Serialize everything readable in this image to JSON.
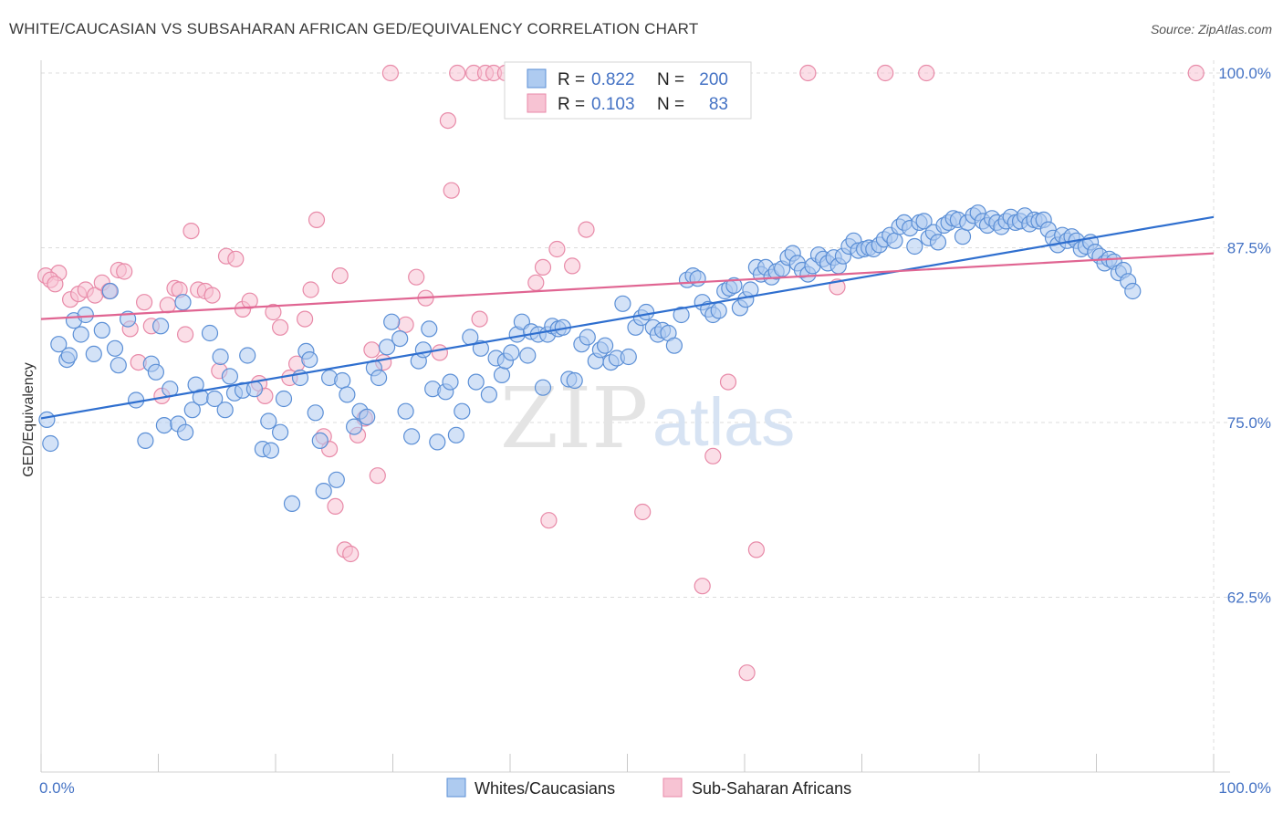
{
  "title": "WHITE/CAUCASIAN VS SUBSAHARAN AFRICAN GED/EQUIVALENCY CORRELATION CHART",
  "source": "Source: ZipAtlas.com",
  "watermark": {
    "zip": "ZIP",
    "atlas": "atlas"
  },
  "legend": {
    "r_label": "R =",
    "n_label": "N =",
    "series": [
      {
        "r": "0.822",
        "n": "200"
      },
      {
        "r": "0.103",
        "n": "83"
      }
    ]
  },
  "bottom_legend": [
    "Whites/Caucasians",
    "Sub-Saharan Africans"
  ],
  "colors": {
    "blue_fill": "#aecbf0",
    "blue_stroke": "#5b8fd6",
    "blue_line": "#2f6fcf",
    "pink_fill": "#f7c3d3",
    "pink_stroke": "#e88aa8",
    "pink_line": "#e06592",
    "grid": "#dcdcdc",
    "label": "#4472c4"
  },
  "chart_data": {
    "type": "scatter",
    "title": "WHITE/CAUCASIAN VS SUBSAHARAN AFRICAN GED/EQUIVALENCY CORRELATION CHART",
    "xlabel": "",
    "ylabel": "GED/Equivalency",
    "xlim": [
      0,
      100
    ],
    "ylim": [
      50,
      100
    ],
    "x_tick_labels": [
      "0.0%",
      "100.0%"
    ],
    "y_ticks": [
      62.5,
      75.0,
      87.5,
      100.0
    ],
    "y_tick_labels": [
      "62.5%",
      "75.0%",
      "87.5%",
      "100.0%"
    ],
    "grid": "horizontal dashed",
    "legend_placement": "top-center",
    "series": [
      {
        "name": "Whites/Caucasians",
        "color": "#5b8fd6",
        "r": 0.822,
        "n": 200,
        "trend": {
          "x": [
            0,
            100
          ],
          "y": [
            75.3,
            89.7
          ]
        },
        "points": [
          [
            0.5,
            75.2
          ],
          [
            0.8,
            73.5
          ],
          [
            1.5,
            80.6
          ],
          [
            2.2,
            79.5
          ],
          [
            2.4,
            79.8
          ],
          [
            2.8,
            82.3
          ],
          [
            3.4,
            81.3
          ],
          [
            3.8,
            82.7
          ],
          [
            4.5,
            79.9
          ],
          [
            5.2,
            81.6
          ],
          [
            5.9,
            84.4
          ],
          [
            6.3,
            80.3
          ],
          [
            6.6,
            79.1
          ],
          [
            7.4,
            82.4
          ],
          [
            8.1,
            76.6
          ],
          [
            8.9,
            73.7
          ],
          [
            9.4,
            79.2
          ],
          [
            9.8,
            78.6
          ],
          [
            10.2,
            81.9
          ],
          [
            10.5,
            74.8
          ],
          [
            11.0,
            77.4
          ],
          [
            11.7,
            74.9
          ],
          [
            12.1,
            83.6
          ],
          [
            12.3,
            74.3
          ],
          [
            12.9,
            75.9
          ],
          [
            13.2,
            77.7
          ],
          [
            13.6,
            76.8
          ],
          [
            14.4,
            81.4
          ],
          [
            14.8,
            76.7
          ],
          [
            15.3,
            79.7
          ],
          [
            15.7,
            75.9
          ],
          [
            16.1,
            78.3
          ],
          [
            16.5,
            77.1
          ],
          [
            17.2,
            77.3
          ],
          [
            17.6,
            79.8
          ],
          [
            18.2,
            77.4
          ],
          [
            18.9,
            73.1
          ],
          [
            19.4,
            75.1
          ],
          [
            19.6,
            73.0
          ],
          [
            20.4,
            74.3
          ],
          [
            20.7,
            76.7
          ],
          [
            21.4,
            69.2
          ],
          [
            22.1,
            78.2
          ],
          [
            22.6,
            80.1
          ],
          [
            22.9,
            79.5
          ],
          [
            23.4,
            75.7
          ],
          [
            23.8,
            73.7
          ],
          [
            24.1,
            70.1
          ],
          [
            24.6,
            78.2
          ],
          [
            25.2,
            70.9
          ],
          [
            25.7,
            78.0
          ],
          [
            26.1,
            77.0
          ],
          [
            26.7,
            74.7
          ],
          [
            27.2,
            75.8
          ],
          [
            27.8,
            75.4
          ],
          [
            28.4,
            78.9
          ],
          [
            28.8,
            78.2
          ],
          [
            29.5,
            80.4
          ],
          [
            29.9,
            82.2
          ],
          [
            30.6,
            81.0
          ],
          [
            31.1,
            75.8
          ],
          [
            31.6,
            74.0
          ],
          [
            32.2,
            79.4
          ],
          [
            32.6,
            80.2
          ],
          [
            33.1,
            81.7
          ],
          [
            33.4,
            77.4
          ],
          [
            33.8,
            73.6
          ],
          [
            34.5,
            77.2
          ],
          [
            34.9,
            77.9
          ],
          [
            35.4,
            74.1
          ],
          [
            35.9,
            75.8
          ],
          [
            36.6,
            81.1
          ],
          [
            37.1,
            77.9
          ],
          [
            37.5,
            80.3
          ],
          [
            38.2,
            77.0
          ],
          [
            38.8,
            79.6
          ],
          [
            39.3,
            78.4
          ],
          [
            39.6,
            79.4
          ],
          [
            40.1,
            80.0
          ],
          [
            40.6,
            81.3
          ],
          [
            41.0,
            82.2
          ],
          [
            41.5,
            79.8
          ],
          [
            41.8,
            81.5
          ],
          [
            42.4,
            81.3
          ],
          [
            42.8,
            77.5
          ],
          [
            43.2,
            81.3
          ],
          [
            43.6,
            81.9
          ],
          [
            44.1,
            81.7
          ],
          [
            44.5,
            81.8
          ],
          [
            45.0,
            78.1
          ],
          [
            45.5,
            78.0
          ],
          [
            46.1,
            80.6
          ],
          [
            46.6,
            81.1
          ],
          [
            47.3,
            79.4
          ],
          [
            47.7,
            80.2
          ],
          [
            48.1,
            80.5
          ],
          [
            48.6,
            79.3
          ],
          [
            49.1,
            79.6
          ],
          [
            49.6,
            83.5
          ],
          [
            50.1,
            79.7
          ],
          [
            50.7,
            81.8
          ],
          [
            51.2,
            82.5
          ],
          [
            51.6,
            82.9
          ],
          [
            52.2,
            81.8
          ],
          [
            52.6,
            81.3
          ],
          [
            53.0,
            81.6
          ],
          [
            53.5,
            81.4
          ],
          [
            54.0,
            80.5
          ],
          [
            54.6,
            82.7
          ],
          [
            55.1,
            85.2
          ],
          [
            55.6,
            85.5
          ],
          [
            56.0,
            85.3
          ],
          [
            56.4,
            83.6
          ],
          [
            56.9,
            83.1
          ],
          [
            57.3,
            82.7
          ],
          [
            57.8,
            83.0
          ],
          [
            58.3,
            84.4
          ],
          [
            58.7,
            84.6
          ],
          [
            59.1,
            84.8
          ],
          [
            59.6,
            83.2
          ],
          [
            60.1,
            83.8
          ],
          [
            60.5,
            84.5
          ],
          [
            61.0,
            86.1
          ],
          [
            61.4,
            85.6
          ],
          [
            61.8,
            86.1
          ],
          [
            62.3,
            85.4
          ],
          [
            62.7,
            85.8
          ],
          [
            63.2,
            86.0
          ],
          [
            63.7,
            86.8
          ],
          [
            64.1,
            87.1
          ],
          [
            64.5,
            86.4
          ],
          [
            64.9,
            85.9
          ],
          [
            65.4,
            85.6
          ],
          [
            65.8,
            86.2
          ],
          [
            66.3,
            87.0
          ],
          [
            66.7,
            86.7
          ],
          [
            67.1,
            86.4
          ],
          [
            67.6,
            86.8
          ],
          [
            68.0,
            86.2
          ],
          [
            68.4,
            86.9
          ],
          [
            68.9,
            87.6
          ],
          [
            69.3,
            88.0
          ],
          [
            69.7,
            87.3
          ],
          [
            70.2,
            87.4
          ],
          [
            70.6,
            87.5
          ],
          [
            71.0,
            87.4
          ],
          [
            71.5,
            87.7
          ],
          [
            71.9,
            88.1
          ],
          [
            72.4,
            88.4
          ],
          [
            72.8,
            88.0
          ],
          [
            73.2,
            89.0
          ],
          [
            73.6,
            89.3
          ],
          [
            74.1,
            88.9
          ],
          [
            74.5,
            87.6
          ],
          [
            74.9,
            89.3
          ],
          [
            75.3,
            89.4
          ],
          [
            75.7,
            88.2
          ],
          [
            76.1,
            88.6
          ],
          [
            76.5,
            87.9
          ],
          [
            77.0,
            89.1
          ],
          [
            77.4,
            89.3
          ],
          [
            77.8,
            89.6
          ],
          [
            78.2,
            89.5
          ],
          [
            78.6,
            88.3
          ],
          [
            79.0,
            89.3
          ],
          [
            79.5,
            89.8
          ],
          [
            79.9,
            90.0
          ],
          [
            80.3,
            89.4
          ],
          [
            80.7,
            89.1
          ],
          [
            81.1,
            89.6
          ],
          [
            81.5,
            89.3
          ],
          [
            81.9,
            89.0
          ],
          [
            82.3,
            89.4
          ],
          [
            82.7,
            89.7
          ],
          [
            83.1,
            89.3
          ],
          [
            83.5,
            89.4
          ],
          [
            83.9,
            89.8
          ],
          [
            84.3,
            89.2
          ],
          [
            84.7,
            89.5
          ],
          [
            85.1,
            89.4
          ],
          [
            85.5,
            89.5
          ],
          [
            85.9,
            88.8
          ],
          [
            86.3,
            88.2
          ],
          [
            86.7,
            87.7
          ],
          [
            87.1,
            88.4
          ],
          [
            87.5,
            88.0
          ],
          [
            87.9,
            88.3
          ],
          [
            88.3,
            88.0
          ],
          [
            88.7,
            87.4
          ],
          [
            89.1,
            87.6
          ],
          [
            89.5,
            87.9
          ],
          [
            89.9,
            87.2
          ],
          [
            90.3,
            86.9
          ],
          [
            90.7,
            86.4
          ],
          [
            91.1,
            86.7
          ],
          [
            91.5,
            86.5
          ],
          [
            91.9,
            85.7
          ],
          [
            92.3,
            85.9
          ],
          [
            92.7,
            85.1
          ],
          [
            93.1,
            84.4
          ]
        ]
      },
      {
        "name": "Sub-Saharan Africans",
        "color": "#e88aa8",
        "r": 0.103,
        "n": 83,
        "trend": {
          "x": [
            0,
            100
          ],
          "y": [
            82.4,
            87.1
          ]
        },
        "points": [
          [
            0.4,
            85.5
          ],
          [
            1.5,
            85.7
          ],
          [
            2.5,
            83.8
          ],
          [
            3.2,
            84.2
          ],
          [
            3.8,
            84.5
          ],
          [
            4.6,
            84.1
          ],
          [
            5.2,
            85.0
          ],
          [
            5.8,
            84.4
          ],
          [
            6.6,
            85.9
          ],
          [
            7.1,
            85.8
          ],
          [
            7.6,
            81.7
          ],
          [
            8.3,
            79.3
          ],
          [
            8.8,
            83.6
          ],
          [
            9.4,
            81.9
          ],
          [
            10.3,
            76.9
          ],
          [
            10.8,
            83.4
          ],
          [
            11.4,
            84.6
          ],
          [
            11.8,
            84.5
          ],
          [
            12.3,
            81.3
          ],
          [
            12.8,
            88.7
          ],
          [
            13.4,
            84.5
          ],
          [
            14.0,
            84.4
          ],
          [
            14.6,
            84.1
          ],
          [
            15.2,
            78.7
          ],
          [
            15.8,
            86.9
          ],
          [
            16.6,
            86.7
          ],
          [
            17.2,
            83.1
          ],
          [
            17.8,
            83.7
          ],
          [
            18.6,
            77.8
          ],
          [
            19.1,
            76.9
          ],
          [
            19.8,
            82.9
          ],
          [
            20.4,
            81.8
          ],
          [
            21.2,
            78.2
          ],
          [
            21.8,
            79.2
          ],
          [
            22.5,
            82.4
          ],
          [
            23.0,
            84.5
          ],
          [
            23.5,
            89.5
          ],
          [
            24.1,
            74.0
          ],
          [
            24.6,
            73.1
          ],
          [
            25.1,
            69.0
          ],
          [
            25.5,
            85.5
          ],
          [
            25.9,
            65.9
          ],
          [
            26.4,
            65.6
          ],
          [
            27.0,
            74.1
          ],
          [
            27.6,
            75.3
          ],
          [
            28.2,
            80.2
          ],
          [
            28.7,
            71.2
          ],
          [
            29.2,
            79.3
          ],
          [
            29.8,
            100.0
          ],
          [
            31.1,
            82.0
          ],
          [
            32.0,
            85.4
          ],
          [
            32.8,
            83.9
          ],
          [
            34.0,
            80.0
          ],
          [
            34.7,
            96.6
          ],
          [
            35.0,
            91.6
          ],
          [
            35.5,
            100.0
          ],
          [
            36.9,
            100.0
          ],
          [
            37.4,
            82.4
          ],
          [
            37.9,
            100.0
          ],
          [
            38.6,
            100.0
          ],
          [
            39.6,
            100.0
          ],
          [
            40.3,
            100.0
          ],
          [
            41.0,
            100.0
          ],
          [
            42.2,
            85.0
          ],
          [
            42.8,
            86.1
          ],
          [
            43.3,
            68.0
          ],
          [
            44.0,
            87.4
          ],
          [
            45.3,
            86.2
          ],
          [
            46.5,
            88.8
          ],
          [
            51.3,
            68.6
          ],
          [
            52.1,
            100.0
          ],
          [
            56.4,
            63.3
          ],
          [
            57.3,
            72.6
          ],
          [
            58.6,
            77.9
          ],
          [
            60.2,
            57.1
          ],
          [
            61.0,
            65.9
          ],
          [
            65.4,
            100.0
          ],
          [
            67.9,
            84.7
          ],
          [
            72.0,
            100.0
          ],
          [
            75.5,
            100.0
          ],
          [
            98.5,
            100.0
          ],
          [
            0.8,
            85.2
          ],
          [
            1.2,
            84.9
          ]
        ]
      }
    ]
  }
}
